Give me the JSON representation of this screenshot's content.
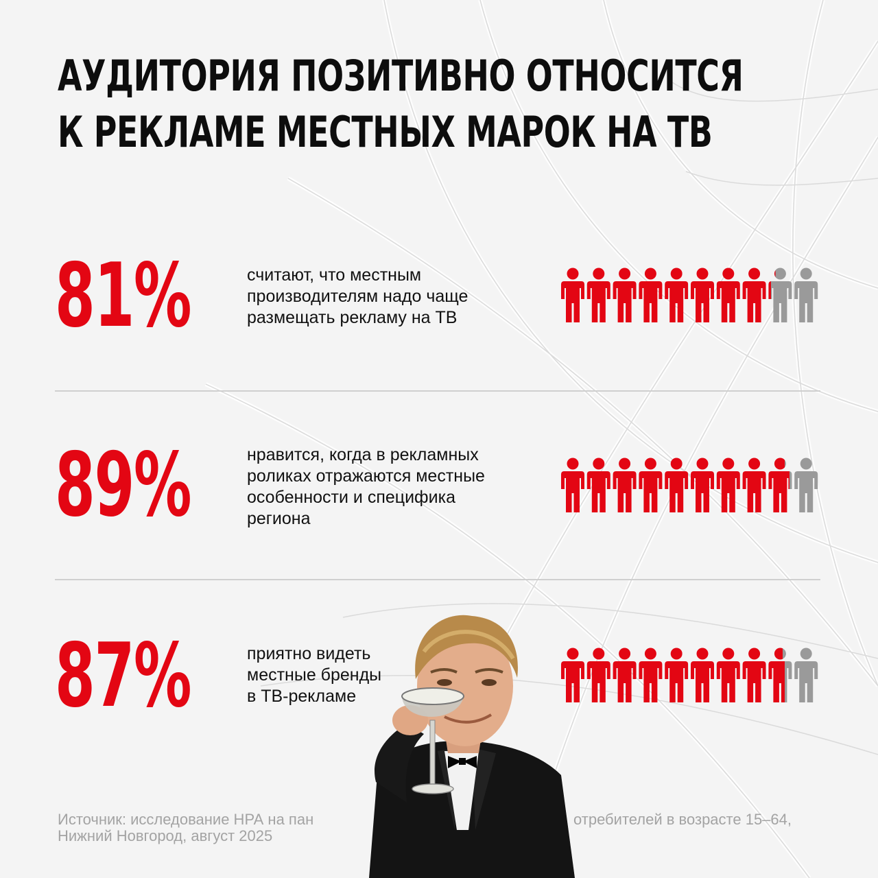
{
  "title": {
    "line1": "АУДИТОРИЯ ПОЗИТИВНО ОТНОСИТСЯ",
    "line2": "К РЕКЛАМЕ МЕСТНЫХ МАРОК НА ТВ"
  },
  "chart_data": {
    "type": "pictogram",
    "units_per_row": 10,
    "colors": {
      "filled": "#e30613",
      "empty": "#9a9a9a",
      "accent_text": "#e30613"
    },
    "rows": [
      {
        "value_label": "81%",
        "value": 81,
        "description": "считают, что местным производителям надо чаще размещать рекламу на ТВ",
        "description_lines": [
          "считают, что местным",
          "производителям надо чаще",
          "размещать рекламу на ТВ"
        ]
      },
      {
        "value_label": "89%",
        "value": 89,
        "description": "нравится, когда в рекламных роликах отражаются местные особенности и специфика региона",
        "description_lines": [
          "нравится, когда в рекламных",
          "роликах отражаются местные",
          "особенности и специфика",
          "региона"
        ]
      },
      {
        "value_label": "87%",
        "value": 87,
        "description": "приятно видеть местные бренды в ТВ-рекламе",
        "description_lines": [
          "приятно видеть",
          "местные бренды",
          "в ТВ-рекламе"
        ]
      }
    ]
  },
  "source": {
    "line1": "Источник: исследование НРА на пан",
    "line1_end": "отребителей в возрасте 15–64,",
    "line2": "Нижний Новгород, август 2025"
  }
}
